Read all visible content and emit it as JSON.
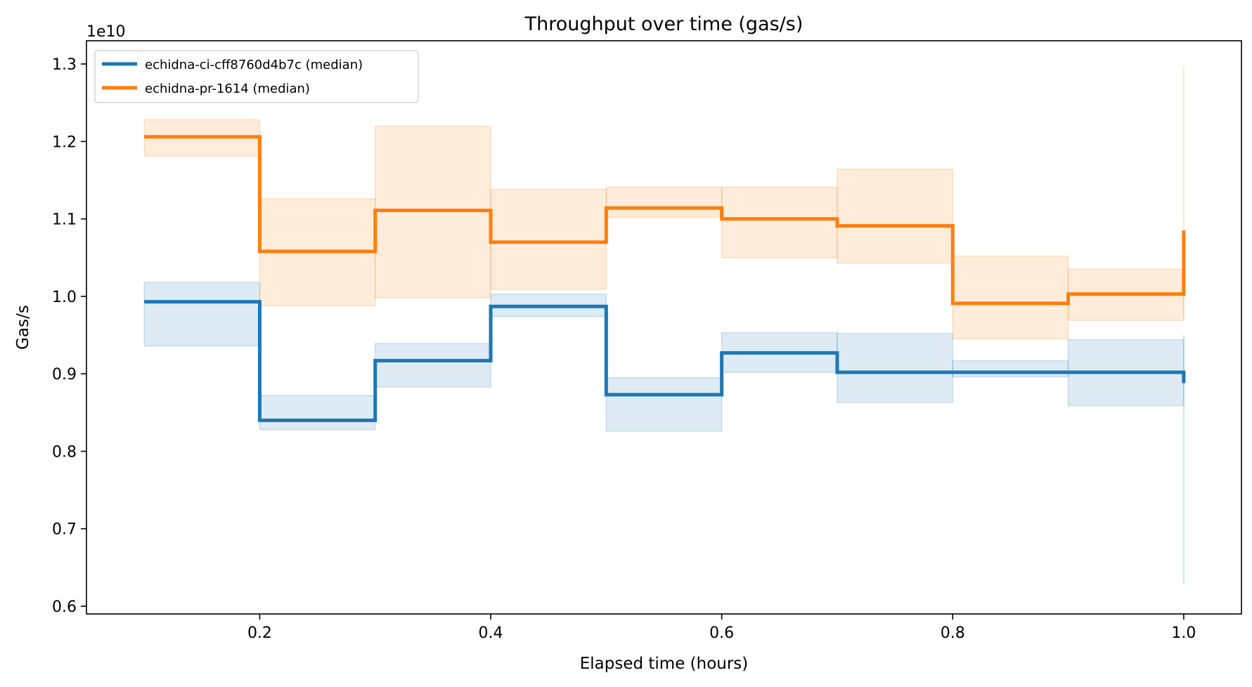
{
  "chart_data": {
    "type": "line",
    "title": "Throughput over time (gas/s)",
    "xlabel": "Elapsed time (hours)",
    "ylabel": "Gas/s",
    "y_multiplier_label": "1e10",
    "xlim": [
      0.05,
      1.05
    ],
    "ylim": [
      0.59,
      1.33
    ],
    "xticks": [
      0.2,
      0.4,
      0.6,
      0.8,
      1.0
    ],
    "xtick_labels": [
      "0.2",
      "0.4",
      "0.6",
      "0.8",
      "1.0"
    ],
    "yticks": [
      0.6,
      0.7,
      0.8,
      0.9,
      1.0,
      1.1,
      1.2,
      1.3
    ],
    "ytick_labels": [
      "0.6",
      "0.7",
      "0.8",
      "0.9",
      "1.0",
      "1.1",
      "1.2",
      "1.3"
    ],
    "grid": false,
    "legend_position": "top-left",
    "drawstyle": "steps-post",
    "x": [
      0.1,
      0.2,
      0.3,
      0.4,
      0.5,
      0.6,
      0.7,
      0.8,
      0.9,
      1.0
    ],
    "series": [
      {
        "name": "echidna-ci-cff8760d4b7c (median)",
        "color": "#1f77b4",
        "values": [
          0.993,
          0.84,
          0.917,
          0.987,
          0.873,
          0.927,
          0.902,
          0.902,
          0.902,
          0.888
        ],
        "band_low": [
          0.936,
          0.828,
          0.883,
          0.974,
          0.826,
          0.902,
          0.863,
          0.896,
          0.859,
          0.628
        ],
        "band_high": [
          1.018,
          0.872,
          0.939,
          1.003,
          0.895,
          0.953,
          0.952,
          0.917,
          0.944,
          0.95
        ]
      },
      {
        "name": "echidna-pr-1614 (median)",
        "color": "#ff7f0e",
        "values": [
          1.206,
          1.058,
          1.111,
          1.07,
          1.114,
          1.1,
          1.091,
          0.991,
          1.003,
          1.085
        ],
        "band_low": [
          1.181,
          0.988,
          0.998,
          1.009,
          1.102,
          1.05,
          1.043,
          0.945,
          0.969,
          0.972
        ],
        "band_high": [
          1.228,
          1.126,
          1.22,
          1.138,
          1.141,
          1.141,
          1.164,
          1.052,
          1.035,
          1.297
        ]
      }
    ]
  }
}
